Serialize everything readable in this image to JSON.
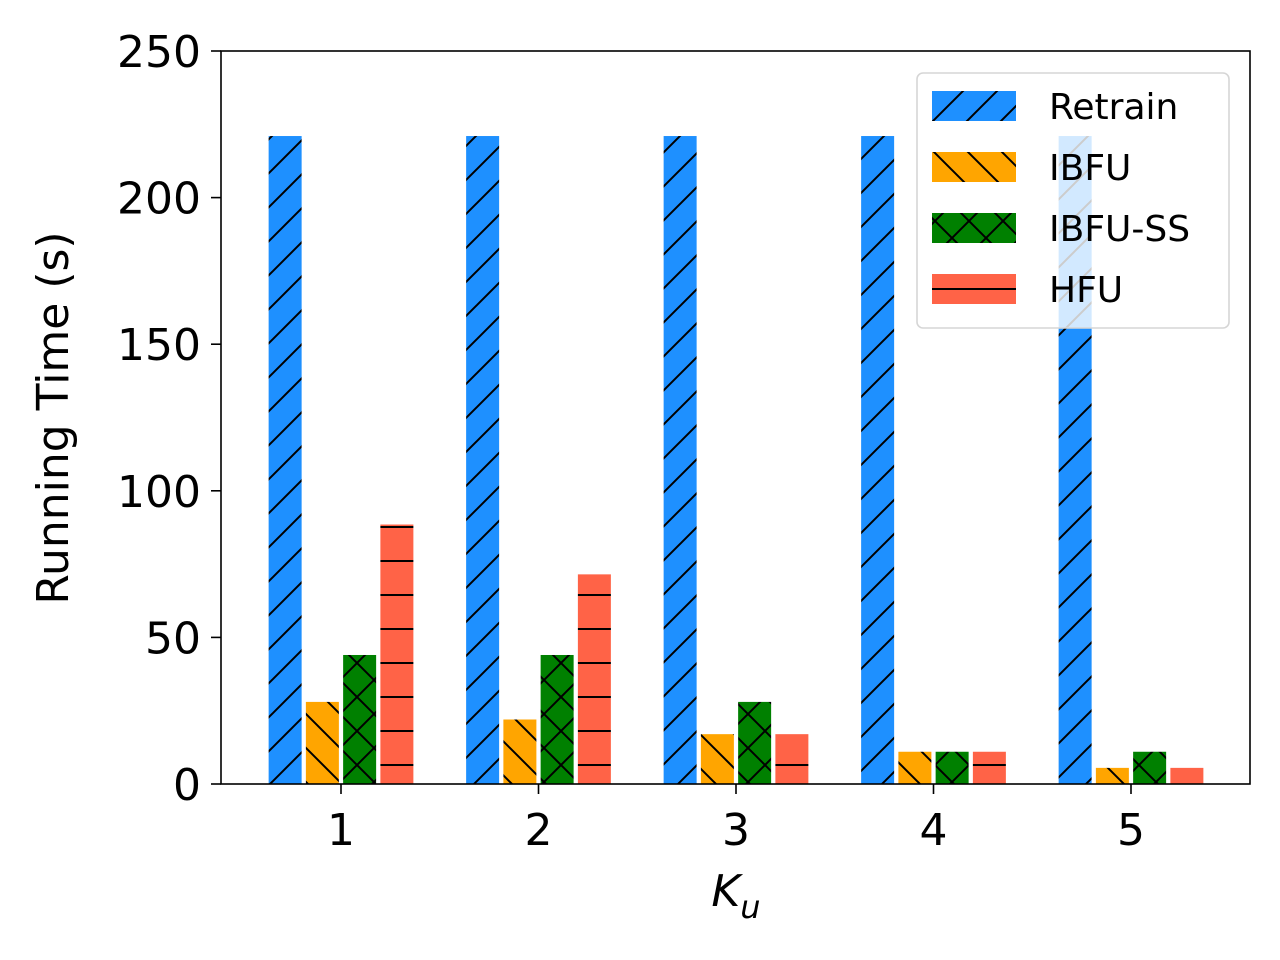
{
  "chart_data": {
    "type": "bar",
    "title": "",
    "xlabel": "K",
    "xlabel_sub": "u",
    "ylabel": "Running Time (s)",
    "categories": [
      "1",
      "2",
      "3",
      "4",
      "5"
    ],
    "ylim": [
      0,
      250
    ],
    "yticks": [
      "0",
      "50",
      "100",
      "150",
      "200",
      "250"
    ],
    "grid": false,
    "legend_position": "top-right",
    "series": [
      {
        "name": "Retrain",
        "color": "#1E90FF",
        "hatch": "forward-slash",
        "values": [
          221,
          221,
          221,
          221,
          221
        ]
      },
      {
        "name": "IBFU",
        "color": "#FFA500",
        "hatch": "back-slash",
        "values": [
          28,
          22,
          17,
          11,
          5.5
        ]
      },
      {
        "name": "IBFU-SS",
        "color": "#008000",
        "hatch": "cross",
        "values": [
          44,
          44,
          28,
          11,
          11
        ]
      },
      {
        "name": "HFU",
        "color": "#FF6347",
        "hatch": "horizontal",
        "values": [
          88.5,
          71.5,
          17,
          11,
          5.5
        ]
      }
    ]
  }
}
